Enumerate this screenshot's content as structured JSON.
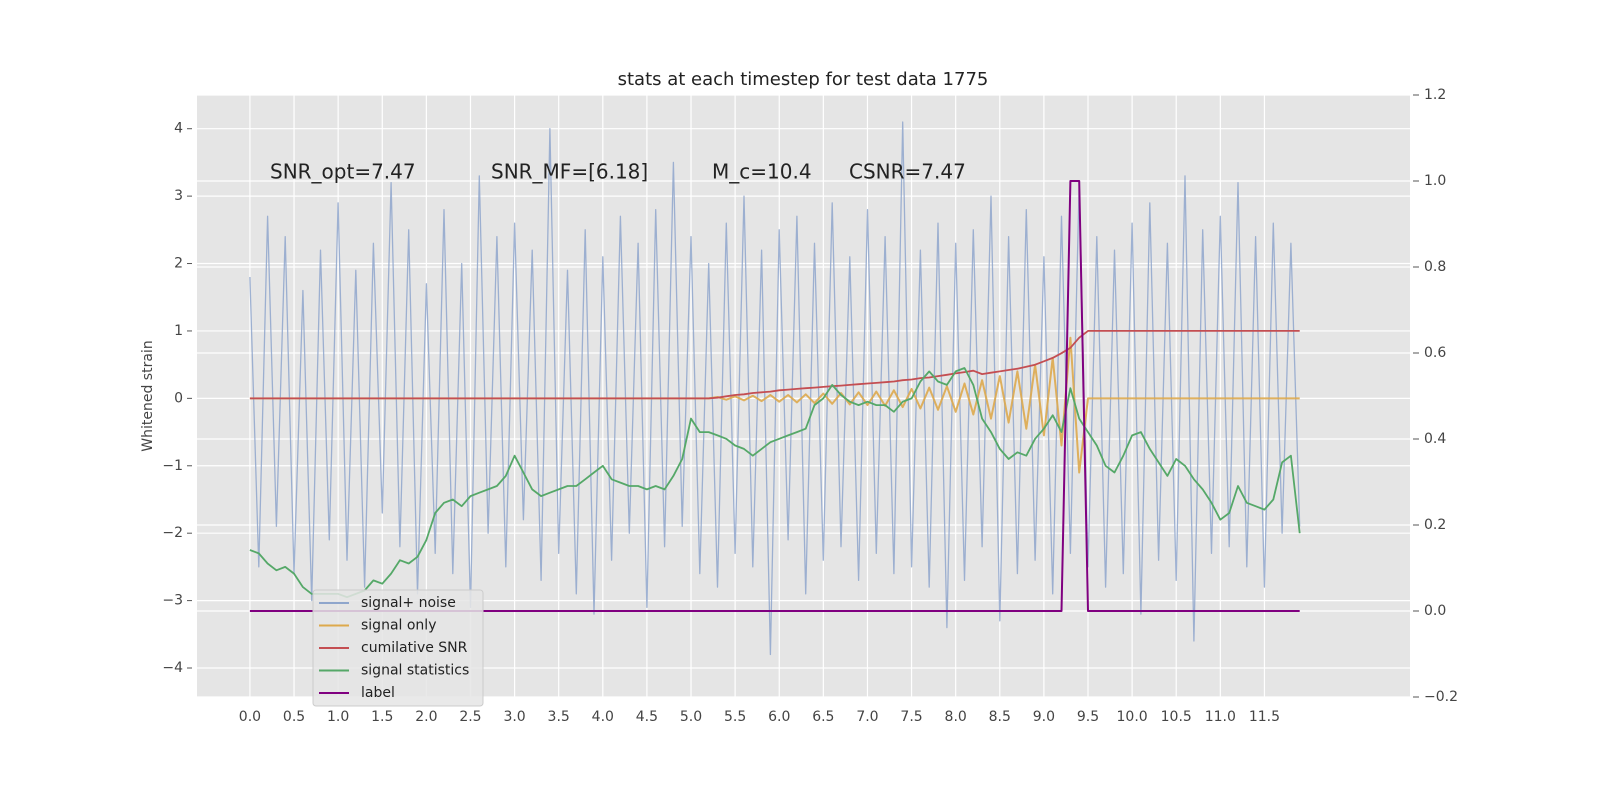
{
  "chart_data": {
    "type": "line",
    "title": "stats at each timestep for test data 1775",
    "ylabel": "Whitened strain",
    "annotations": [
      "SNR_opt=7.47",
      "SNR_MF=[6.18]",
      "M_c=10.4",
      "CSNR=7.47"
    ],
    "grid": true,
    "legend": "lower left",
    "xlim": [
      -0.6,
      13.15
    ],
    "ylim": [
      -4.43,
      4.5
    ],
    "y2lim": [
      -0.2,
      1.2
    ],
    "xticks": [
      {
        "value": 0,
        "label": "0.0"
      },
      0.5,
      {
        "value": 1,
        "label": "1.0"
      },
      1.5,
      {
        "value": 2,
        "label": "2.0"
      },
      2.5,
      {
        "value": 3,
        "label": "3.0"
      },
      3.5,
      {
        "value": 4,
        "label": "4.0"
      },
      4.5,
      {
        "value": 5,
        "label": "5.0"
      },
      5.5,
      {
        "value": 6,
        "label": "6.0"
      },
      6.5,
      {
        "value": 7,
        "label": "7.0"
      },
      7.5,
      {
        "value": 8,
        "label": "8.0"
      },
      8.5,
      {
        "value": 9,
        "label": "9.0"
      },
      9.5,
      {
        "value": 10,
        "label": "10.0"
      },
      10.5,
      {
        "value": 11,
        "label": "11.0"
      },
      11.5
    ],
    "yticks": [
      {
        "value": -4,
        "label": "−4"
      },
      {
        "value": -3,
        "label": "−3"
      },
      {
        "value": -2,
        "label": "−2"
      },
      {
        "value": -1,
        "label": "−1"
      },
      0,
      1,
      2,
      3,
      4
    ],
    "y2ticks": [
      {
        "value": -0.2,
        "label": "−0.2"
      },
      {
        "value": 0,
        "label": "0.0"
      },
      0.2,
      0.4,
      0.6,
      0.8,
      {
        "value": 1,
        "label": "1.0"
      },
      1.2
    ],
    "x": [
      0,
      0.1,
      0.2,
      0.3,
      0.4,
      0.5,
      0.6,
      0.7,
      0.8,
      0.9,
      1,
      1.1,
      1.2,
      1.3,
      1.4,
      1.5,
      1.6,
      1.7,
      1.8,
      1.9,
      2,
      2.1,
      2.2,
      2.3,
      2.4,
      2.5,
      2.6,
      2.7,
      2.8,
      2.9,
      3,
      3.1,
      3.2,
      3.3,
      3.4,
      3.5,
      3.6,
      3.7,
      3.8,
      3.9,
      4,
      4.1,
      4.2,
      4.3,
      4.4,
      4.5,
      4.6,
      4.7,
      4.8,
      4.9,
      5,
      5.1,
      5.2,
      5.3,
      5.4,
      5.5,
      5.6,
      5.7,
      5.8,
      5.9,
      6,
      6.1,
      6.2,
      6.3,
      6.4,
      6.5,
      6.6,
      6.7,
      6.8,
      6.9,
      7,
      7.1,
      7.2,
      7.3,
      7.4,
      7.5,
      7.6,
      7.7,
      7.8,
      7.9,
      8,
      8.1,
      8.2,
      8.3,
      8.4,
      8.5,
      8.6,
      8.7,
      8.8,
      8.9,
      9,
      9.1,
      9.2,
      9.3,
      9.4,
      9.5,
      9.6,
      9.7,
      9.8,
      9.9,
      10,
      10.1,
      10.2,
      10.3,
      10.4,
      10.5,
      10.6,
      10.7,
      10.8,
      10.9,
      11,
      11.1,
      11.2,
      11.3,
      11.4,
      11.5,
      11.6,
      11.7,
      11.8,
      11.9
    ],
    "series": [
      {
        "name": "signal+ noise",
        "color": "#8fa6cc",
        "values": [
          1.8,
          -2.5,
          2.7,
          -1.9,
          2.4,
          -2.6,
          1.6,
          -3.0,
          2.2,
          -2.1,
          2.9,
          -2.4,
          1.9,
          -2.8,
          2.3,
          -1.7,
          3.2,
          -2.2,
          2.5,
          -2.9,
          1.7,
          -2.3,
          2.8,
          -2.6,
          2.0,
          -3.1,
          3.3,
          -2.0,
          2.4,
          -2.5,
          2.6,
          -1.8,
          2.2,
          -2.7,
          4.0,
          -2.3,
          1.9,
          -2.9,
          2.5,
          -3.2,
          2.1,
          -2.4,
          2.7,
          -2.0,
          2.3,
          -3.1,
          2.8,
          -2.2,
          3.5,
          -1.9,
          2.4,
          -2.6,
          2.0,
          -2.8,
          2.6,
          -2.3,
          3.0,
          -2.5,
          2.2,
          -3.8,
          2.5,
          -2.1,
          2.7,
          -2.9,
          2.3,
          -2.4,
          2.9,
          -2.2,
          2.1,
          -2.7,
          2.8,
          -2.3,
          2.4,
          -2.6,
          4.1,
          -2.5,
          2.2,
          -2.8,
          2.6,
          -3.4,
          2.3,
          -2.7,
          2.5,
          -2.2,
          3.0,
          -3.3,
          2.4,
          -2.6,
          2.8,
          -2.4,
          2.1,
          -2.9,
          2.7,
          -2.3,
          3.2,
          -2.5,
          2.4,
          -2.8,
          2.2,
          -2.6,
          2.6,
          -3.2,
          2.9,
          -2.4,
          2.3,
          -2.7,
          3.3,
          -3.6,
          2.5,
          -2.3,
          2.7,
          -2.2,
          3.2,
          -2.5,
          2.4,
          -2.8,
          2.6,
          -2.0,
          2.3,
          -1.9
        ]
      },
      {
        "name": "signal only",
        "color": "#dda94c",
        "values": [
          0,
          0,
          0,
          0,
          0,
          0,
          0,
          0,
          0,
          0,
          0,
          0,
          0,
          0,
          0,
          0,
          0,
          0,
          0,
          0,
          0,
          0,
          0,
          0,
          0,
          0,
          0,
          0,
          0,
          0,
          0,
          0,
          0,
          0,
          0,
          0,
          0,
          0,
          0,
          0,
          0,
          0,
          0,
          0,
          0,
          0,
          0,
          0,
          0,
          0,
          0,
          0,
          0,
          0.02,
          -0.02,
          0.03,
          -0.03,
          0.04,
          -0.04,
          0.05,
          -0.05,
          0.05,
          -0.06,
          0.06,
          -0.07,
          0.07,
          -0.08,
          0.08,
          -0.09,
          0.09,
          -0.1,
          0.1,
          -0.11,
          0.12,
          -0.13,
          0.14,
          -0.15,
          0.16,
          -0.17,
          0.18,
          -0.2,
          0.22,
          -0.24,
          0.27,
          -0.3,
          0.33,
          -0.36,
          0.4,
          -0.45,
          0.5,
          -0.55,
          0.6,
          -0.7,
          0.9,
          -1.1,
          0,
          0,
          0,
          0,
          0,
          0,
          0,
          0,
          0,
          0,
          0,
          0,
          0,
          0,
          0,
          0,
          0,
          0,
          0,
          0,
          0,
          0,
          0,
          0,
          0
        ]
      },
      {
        "name": "cumilative SNR",
        "color": "#c44e52",
        "values": [
          0,
          0,
          0,
          0,
          0,
          0,
          0,
          0,
          0,
          0,
          0,
          0,
          0,
          0,
          0,
          0,
          0,
          0,
          0,
          0,
          0,
          0,
          0,
          0,
          0,
          0,
          0,
          0,
          0,
          0,
          0,
          0,
          0,
          0,
          0,
          0,
          0,
          0,
          0,
          0,
          0,
          0,
          0,
          0,
          0,
          0,
          0,
          0,
          0,
          0,
          0,
          0,
          0,
          0.01,
          0.03,
          0.05,
          0.06,
          0.08,
          0.09,
          0.1,
          0.12,
          0.13,
          0.14,
          0.15,
          0.16,
          0.17,
          0.18,
          0.19,
          0.2,
          0.21,
          0.22,
          0.23,
          0.24,
          0.25,
          0.27,
          0.28,
          0.3,
          0.31,
          0.33,
          0.35,
          0.37,
          0.39,
          0.41,
          0.36,
          0.38,
          0.4,
          0.42,
          0.44,
          0.47,
          0.5,
          0.55,
          0.6,
          0.67,
          0.75,
          0.9,
          1,
          1,
          1,
          1,
          1,
          1,
          1,
          1,
          1,
          1,
          1,
          1,
          1,
          1,
          1,
          1,
          1,
          1,
          1,
          1,
          1,
          1,
          1,
          1,
          1
        ]
      },
      {
        "name": "signal statistics",
        "color": "#55a868",
        "values": [
          -2.25,
          -2.3,
          -2.45,
          -2.55,
          -2.5,
          -2.6,
          -2.8,
          -2.9,
          -2.9,
          -2.9,
          -2.9,
          -2.95,
          -2.9,
          -2.85,
          -2.7,
          -2.75,
          -2.6,
          -2.4,
          -2.45,
          -2.35,
          -2.1,
          -1.7,
          -1.55,
          -1.5,
          -1.6,
          -1.45,
          -1.4,
          -1.35,
          -1.3,
          -1.15,
          -0.85,
          -1.1,
          -1.35,
          -1.45,
          -1.4,
          -1.35,
          -1.3,
          -1.3,
          -1.2,
          -1.1,
          -1.0,
          -1.2,
          -1.25,
          -1.3,
          -1.3,
          -1.35,
          -1.3,
          -1.35,
          -1.15,
          -0.9,
          -0.3,
          -0.5,
          -0.5,
          -0.55,
          -0.6,
          -0.7,
          -0.75,
          -0.85,
          -0.75,
          -0.65,
          -0.6,
          -0.55,
          -0.5,
          -0.45,
          -0.1,
          0.0,
          0.2,
          0.05,
          -0.05,
          -0.1,
          -0.05,
          -0.1,
          -0.1,
          -0.2,
          -0.05,
          0.0,
          0.25,
          0.4,
          0.25,
          0.2,
          0.4,
          0.45,
          0.2,
          -0.3,
          -0.5,
          -0.75,
          -0.9,
          -0.8,
          -0.85,
          -0.6,
          -0.45,
          -0.25,
          -0.5,
          0.15,
          -0.3,
          -0.5,
          -0.7,
          -1.0,
          -1.1,
          -0.85,
          -0.55,
          -0.5,
          -0.75,
          -0.95,
          -1.15,
          -0.9,
          -1.0,
          -1.2,
          -1.35,
          -1.55,
          -1.8,
          -1.7,
          -1.3,
          -1.55,
          -1.6,
          -1.65,
          -1.5,
          -0.95,
          -0.85,
          -2.0
        ]
      },
      {
        "name": "label",
        "color": "#800080",
        "axis": "y2",
        "values": [
          0,
          0,
          0,
          0,
          0,
          0,
          0,
          0,
          0,
          0,
          0,
          0,
          0,
          0,
          0,
          0,
          0,
          0,
          0,
          0,
          0,
          0,
          0,
          0,
          0,
          0,
          0,
          0,
          0,
          0,
          0,
          0,
          0,
          0,
          0,
          0,
          0,
          0,
          0,
          0,
          0,
          0,
          0,
          0,
          0,
          0,
          0,
          0,
          0,
          0,
          0,
          0,
          0,
          0,
          0,
          0,
          0,
          0,
          0,
          0,
          0,
          0,
          0,
          0,
          0,
          0,
          0,
          0,
          0,
          0,
          0,
          0,
          0,
          0,
          0,
          0,
          0,
          0,
          0,
          0,
          0,
          0,
          0,
          0,
          0,
          0,
          0,
          0,
          0,
          0,
          0,
          0,
          0,
          1,
          1,
          0,
          0,
          0,
          0,
          0,
          0,
          0,
          0,
          0,
          0,
          0,
          0,
          0,
          0,
          0,
          0,
          0,
          0,
          0,
          0,
          0,
          0,
          0,
          0,
          0
        ]
      }
    ]
  }
}
